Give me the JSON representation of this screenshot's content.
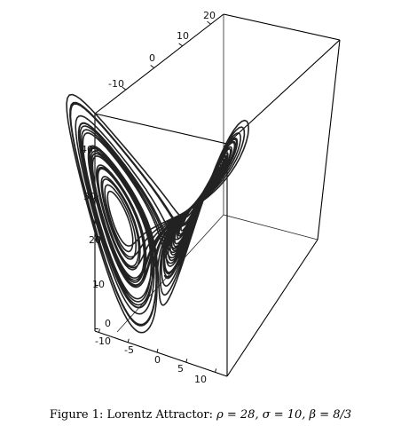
{
  "caption": {
    "prefix": "Figure 1: Lorentz Attractor: ",
    "equation": "ρ = 28, σ = 10, β = 8/3"
  },
  "axes": {
    "top_ticks": [
      "20",
      "10",
      "0",
      "-10"
    ],
    "vertical_ticks": [
      "40",
      "30",
      "20",
      "10",
      "0"
    ],
    "bottom_ticks": [
      "-10",
      "-5",
      "0",
      "5",
      "10"
    ]
  },
  "parameters": {
    "rho": 28,
    "sigma": 10,
    "beta": 2.6667
  }
}
